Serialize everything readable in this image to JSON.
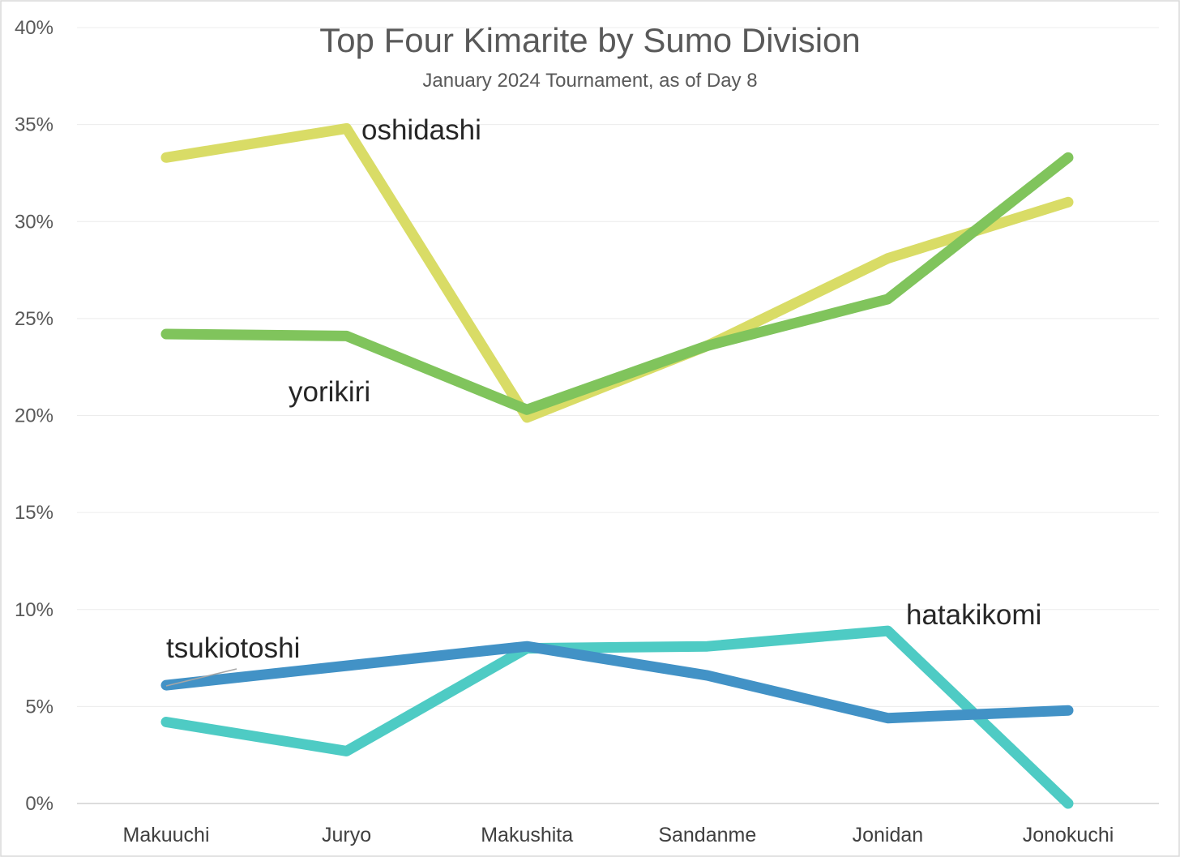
{
  "chart_data": {
    "type": "line",
    "title": "Top Four Kimarite by Sumo Division",
    "subtitle": "January 2024 Tournament, as of Day 8",
    "xlabel": "",
    "ylabel": "",
    "categories": [
      "Makuuchi",
      "Juryo",
      "Makushita",
      "Sandanme",
      "Jonidan",
      "Jonokuchi"
    ],
    "ylim": [
      0,
      0.4
    ],
    "yticks": [
      0,
      0.05,
      0.1,
      0.15,
      0.2,
      0.25,
      0.3,
      0.35,
      0.4
    ],
    "ytick_labels": [
      "0%",
      "5%",
      "10%",
      "15%",
      "20%",
      "25%",
      "30%",
      "35%",
      "40%"
    ],
    "grid": true,
    "legend": "none (direct labels)",
    "series": [
      {
        "name": "oshidashi",
        "color": "#d9dc66",
        "values": [
          0.333,
          0.348,
          0.199,
          0.236,
          0.281,
          0.31
        ]
      },
      {
        "name": "yorikiri",
        "color": "#80c45c",
        "values": [
          0.242,
          0.241,
          0.203,
          0.236,
          0.26,
          0.333
        ]
      },
      {
        "name": "hatakikomi",
        "color": "#4ecbc4",
        "values": [
          0.042,
          0.027,
          0.08,
          0.081,
          0.089,
          0.0
        ]
      },
      {
        "name": "tsukiotoshi",
        "color": "#4292c6",
        "values": [
          0.061,
          0.071,
          0.081,
          0.066,
          0.044,
          0.048
        ]
      }
    ]
  }
}
